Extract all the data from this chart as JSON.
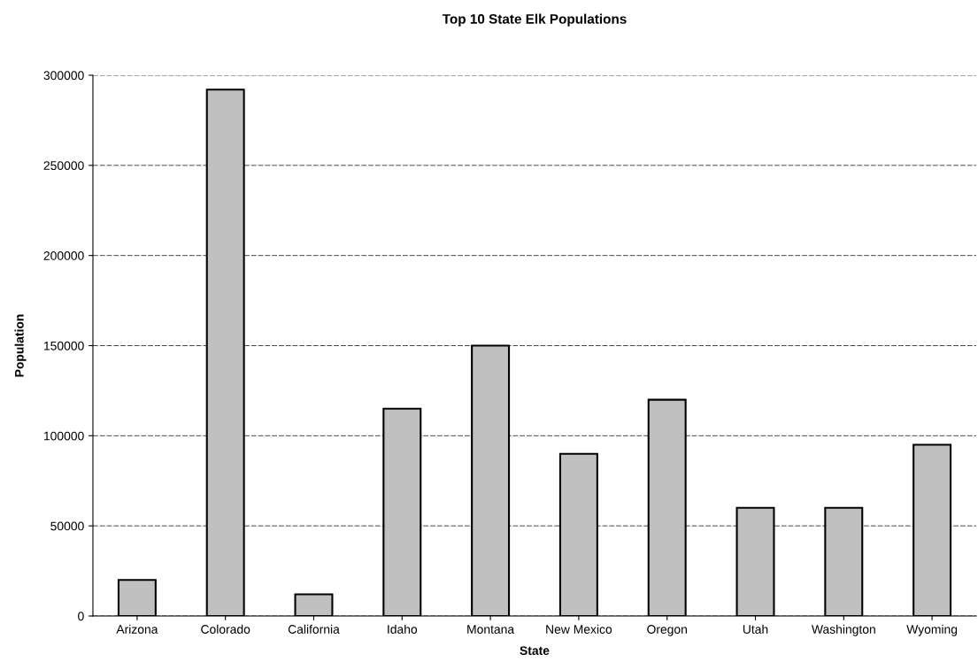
{
  "chart_data": {
    "type": "bar",
    "title": "Top 10 State Elk Populations",
    "xlabel": "State",
    "ylabel": "Population",
    "categories": [
      "Arizona",
      "Colorado",
      "California",
      "Idaho",
      "Montana",
      "New Mexico",
      "Oregon",
      "Utah",
      "Washington",
      "Wyoming"
    ],
    "values": [
      20000,
      292000,
      12000,
      115000,
      150000,
      90000,
      120000,
      60000,
      60000,
      95000
    ],
    "color": "#c0c0c0",
    "ylim": [
      0,
      300000
    ],
    "yticks": [
      0,
      50000,
      100000,
      150000,
      200000,
      250000,
      300000
    ],
    "grid": "y",
    "legend": false
  }
}
